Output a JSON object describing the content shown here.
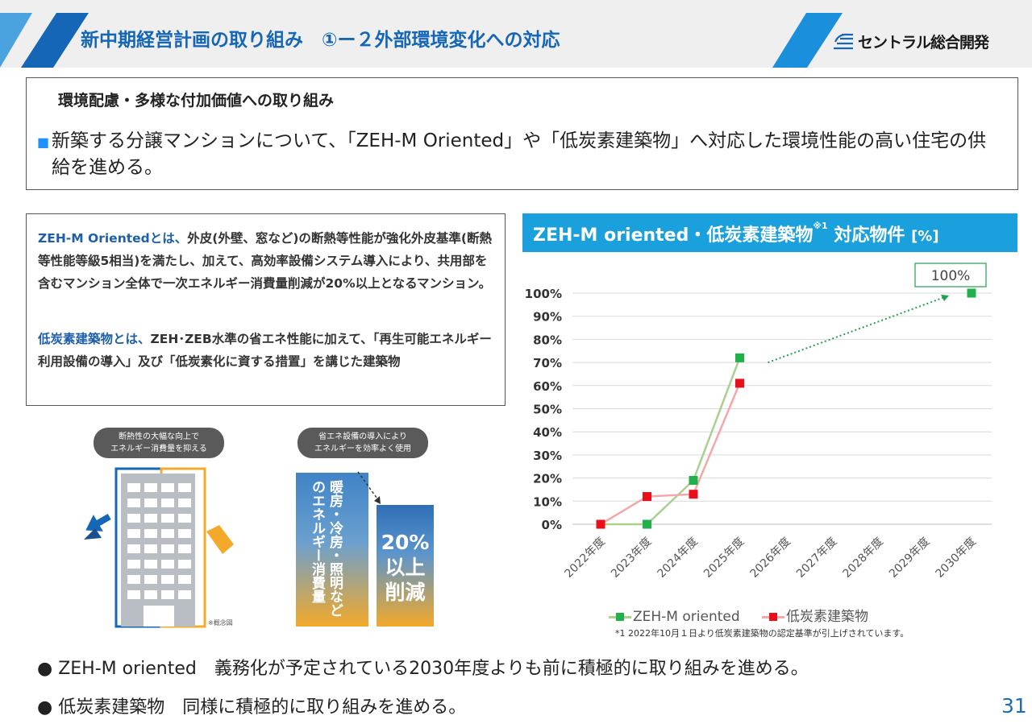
{
  "header": {
    "title": "新中期経営計画の取り組み　①ー２外部環境変化への対応",
    "logo_text": "セントラル総合開発"
  },
  "env": {
    "heading": "環境配慮・多様な付加価値への取り組み",
    "bullet": "■",
    "body": "新築する分譲マンションについて、「ZEH-M Oriented」や「低炭素建築物」へ対応した環境性能の高い住宅の供給を進める。"
  },
  "definitions": {
    "zeh_term": "ZEH-M Orientedとは、",
    "zeh_desc": "外皮(外壁、窓など)の断熱等性能が強化外皮基準(断熱等性能等級5相当)を満たし、加えて、高効率設備システム導入により、共用部を含むマンション全体で一次エネルギー消費量削減が20%以上となるマンション。",
    "lc_term": "低炭素建築物とは、",
    "lc_desc": "ZEH･ZEB水準の省エネ性能に加えて、「再生可能エネルギー利用設備の導入」及び「低炭素化に資する措置」を講じた建築物"
  },
  "diagram": {
    "insulation_caption_1": "断熱性の大幅な向上で",
    "insulation_caption_2": "エネルギー消費量を抑える",
    "equipment_caption_1": "省エネ設備の導入により",
    "equipment_caption_2": "エネルギーを効率よく使用",
    "bar_label": "暖房・冷房・照明などのエネルギー消費量",
    "reduction_label": "20%\n以上\n削減",
    "concept_note": "※概念図"
  },
  "chart_title": {
    "main": "ZEH-M oriented・低炭素建築物",
    "note_mark": "※1",
    "tail": " 対応物件",
    "unit": "[%]"
  },
  "chart_data": {
    "type": "line",
    "categories": [
      "2022年度",
      "2023年度",
      "2024年度",
      "2025年度",
      "2026年度",
      "2027年度",
      "2028年度",
      "2029年度",
      "2030年度"
    ],
    "series": [
      {
        "name": "ZEH-M oriented",
        "color": "#a9d18e",
        "marker_color": "#22b04b",
        "values": [
          0,
          0,
          19,
          72,
          null,
          null,
          null,
          null,
          100
        ]
      },
      {
        "name": "低炭素建築物",
        "color": "#f4a7a7",
        "marker_color": "#e8101a",
        "values": [
          0,
          12,
          13,
          61,
          null,
          null,
          null,
          null,
          null
        ]
      }
    ],
    "y_ticks": [
      "0%",
      "10%",
      "20%",
      "30%",
      "40%",
      "50%",
      "60%",
      "70%",
      "80%",
      "90%",
      "100%"
    ],
    "ylim": [
      0,
      100
    ],
    "grid": true,
    "legend": "bottom",
    "annotation": "100%",
    "trend_arrow_color": "#22a050"
  },
  "chart_footnote": "*1 2022年10月１日より低炭素建築物の認定基準が引上げされています。",
  "bottom": {
    "line1": "● ZEH-M oriented　義務化が予定されている2030年度よりも前に積極的に取り組みを進める。",
    "line2": "● 低炭素建築物　同様に積極的に取り組みを進める。"
  },
  "page_number": "31"
}
